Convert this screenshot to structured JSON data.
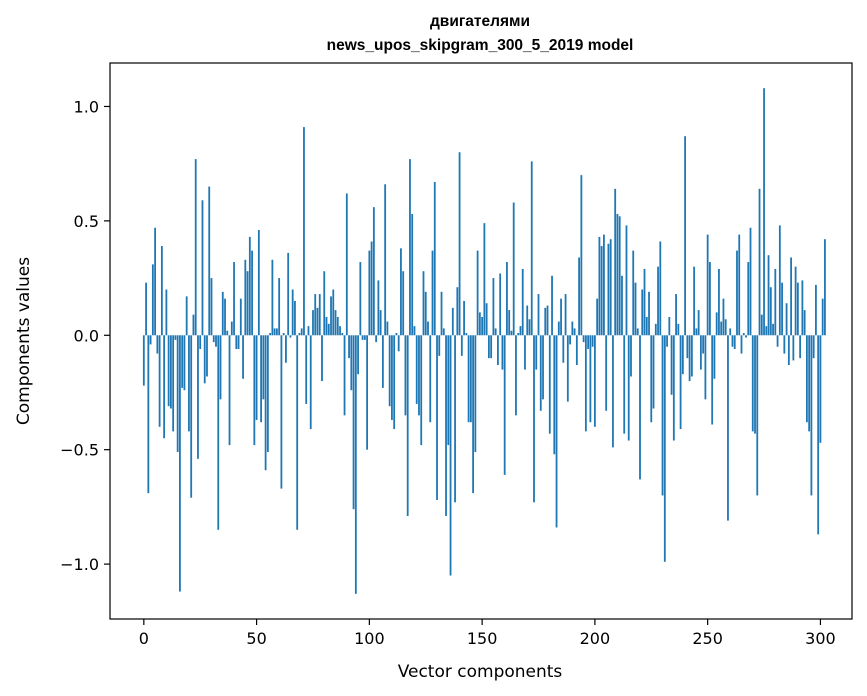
{
  "chart_data": {
    "type": "bar",
    "title": "двигателями",
    "subtitle": "news_upos_skipgram_300_5_2019 model",
    "xlabel": "Vector components",
    "ylabel": "Components values",
    "xlim": [
      -15,
      314
    ],
    "ylim": [
      -1.24,
      1.19
    ],
    "xticks": [
      0,
      50,
      100,
      150,
      200,
      250,
      300
    ],
    "yticks": [
      -1.0,
      -0.5,
      0.0,
      0.5,
      1.0
    ],
    "ytick_labels": [
      "−1.0",
      "−0.5",
      "0.0",
      "0.5",
      "1.0"
    ],
    "bar_color": "#1f77b4",
    "grid": false,
    "values": [
      -0.22,
      0.23,
      -0.69,
      -0.04,
      0.31,
      0.47,
      -0.08,
      -0.4,
      0.39,
      -0.45,
      0.2,
      -0.31,
      -0.32,
      -0.42,
      -0.02,
      -0.51,
      -1.12,
      -0.23,
      -0.24,
      0.17,
      -0.42,
      -0.71,
      0.09,
      0.77,
      -0.54,
      -0.06,
      0.59,
      -0.21,
      -0.18,
      0.65,
      0.25,
      -0.03,
      -0.05,
      -0.85,
      -0.28,
      0.19,
      0.16,
      0.02,
      -0.48,
      0.06,
      0.32,
      -0.06,
      -0.06,
      0.16,
      -0.19,
      0.33,
      0.28,
      0.43,
      0.37,
      -0.48,
      -0.37,
      0.46,
      -0.38,
      -0.28,
      -0.59,
      -0.51,
      0.01,
      0.33,
      0.03,
      0.03,
      0.25,
      -0.67,
      0.01,
      -0.12,
      0.36,
      -0.01,
      0.2,
      0.15,
      -0.85,
      0.01,
      0.03,
      0.91,
      -0.3,
      0.04,
      -0.41,
      0.11,
      0.18,
      0.12,
      0.18,
      -0.2,
      0.28,
      0.08,
      0.05,
      0.17,
      0.2,
      0.11,
      0.08,
      0.04,
      0.01,
      -0.35,
      0.62,
      -0.1,
      -0.24,
      -0.76,
      -1.13,
      -0.17,
      0.32,
      -0.02,
      -0.02,
      -0.5,
      0.37,
      0.41,
      0.56,
      -0.03,
      0.24,
      0.11,
      -0.23,
      0.66,
      0.06,
      -0.31,
      -0.37,
      -0.41,
      0.01,
      -0.07,
      0.38,
      0.28,
      -0.35,
      -0.79,
      0.77,
      0.53,
      0.04,
      -0.3,
      -0.35,
      -0.48,
      0.28,
      0.19,
      0.06,
      -0.38,
      0.37,
      0.67,
      -0.72,
      -0.09,
      0.19,
      0.03,
      -0.79,
      -0.48,
      -1.05,
      0.12,
      -0.73,
      0.21,
      0.8,
      -0.09,
      0.15,
      0.01,
      -0.38,
      -0.38,
      -0.69,
      -0.51,
      0.37,
      0.1,
      0.08,
      0.49,
      0.14,
      -0.1,
      -0.1,
      0.25,
      0.03,
      -0.13,
      0.27,
      -0.15,
      -0.61,
      0.32,
      0.11,
      0.02,
      0.58,
      -0.35,
      0.01,
      0.04,
      0.29,
      -0.15,
      0.13,
      0.07,
      0.76,
      -0.73,
      -0.15,
      0.18,
      -0.33,
      -0.28,
      0.12,
      0.13,
      -0.43,
      0.26,
      -0.52,
      -0.84,
      0.06,
      0.16,
      -0.12,
      0.18,
      -0.29,
      -0.04,
      0.06,
      0.03,
      -0.13,
      0.34,
      0.7,
      -0.03,
      -0.42,
      -0.06,
      -0.38,
      -0.05,
      -0.4,
      0.16,
      0.43,
      0.39,
      0.44,
      -0.33,
      0.4,
      0.42,
      -0.49,
      0.64,
      0.53,
      0.52,
      0.26,
      -0.43,
      0.48,
      -0.46,
      -0.18,
      0.37,
      0.23,
      0.03,
      -0.63,
      0.2,
      0.29,
      0.08,
      0.19,
      -0.38,
      -0.32,
      0.05,
      0.3,
      0.41,
      -0.7,
      -0.99,
      -0.05,
      0.08,
      -0.26,
      -0.46,
      0.18,
      0.05,
      -0.41,
      -0.17,
      0.87,
      -0.1,
      -0.2,
      -0.18,
      0.3,
      0.03,
      0.11,
      -0.15,
      -0.08,
      -0.28,
      0.44,
      0.32,
      -0.39,
      -0.19,
      0.1,
      0.29,
      0.06,
      0.16,
      0.07,
      -0.81,
      0.03,
      -0.05,
      -0.06,
      0.37,
      0.44,
      -0.08,
      0.01,
      -0.01,
      0.32,
      0.47,
      -0.42,
      -0.43,
      -0.7,
      0.64,
      0.09,
      1.08,
      0.04,
      0.35,
      0.21,
      0.05,
      0.29,
      -0.05,
      0.48,
      0.23,
      -0.08,
      0.14,
      -0.13,
      0.34,
      -0.11,
      0.3,
      0.23,
      -0.1,
      0.24,
      0.11,
      -0.38,
      -0.42,
      -0.7,
      -0.1,
      0.22,
      -0.87,
      -0.47,
      0.16,
      0.42
    ]
  }
}
